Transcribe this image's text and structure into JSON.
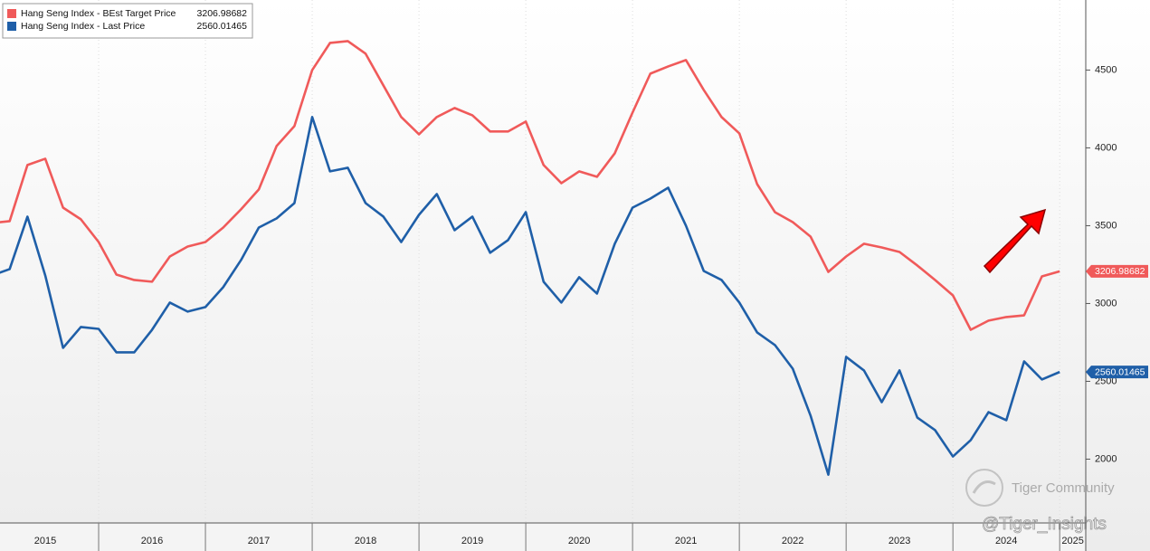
{
  "chart_data": {
    "type": "line",
    "categories": [
      "2015",
      null,
      null,
      null,
      null,
      null,
      "2016",
      null,
      null,
      null,
      null,
      null,
      "2017",
      null,
      null,
      null,
      null,
      null,
      "2018",
      null,
      null,
      null,
      null,
      null,
      "2019",
      null,
      null,
      null,
      null,
      null,
      "2020",
      null,
      null,
      null,
      null,
      null,
      "2021",
      null,
      null,
      null,
      null,
      null,
      "2022",
      null,
      null,
      null,
      null,
      null,
      "2023",
      null,
      null,
      null,
      null,
      null,
      "2024",
      null,
      null,
      null,
      null,
      null,
      "2025"
    ],
    "series": [
      {
        "name": "Hang Seng Index - BEst Target Price",
        "color": "#f05a5a",
        "axis": "y2",
        "values": [
          3517,
          3529,
          3890,
          3930,
          3616,
          3541,
          3395,
          3186,
          3151,
          3140,
          3302,
          3366,
          3395,
          3488,
          3605,
          3733,
          4012,
          4140,
          4500,
          4674,
          4686,
          4605,
          4401,
          4198,
          4087,
          4198,
          4256,
          4209,
          4105,
          4105,
          4169,
          3890,
          3773,
          3849,
          3814,
          3965,
          4227,
          4477,
          4523,
          4564,
          4372,
          4198,
          4093,
          3767,
          3587,
          3523,
          3430,
          3203,
          3302,
          3384,
          3360,
          3331,
          3244,
          3151,
          3052,
          2831,
          2890,
          2913,
          2924,
          3174,
          3206.98682
        ]
      },
      {
        "name": "Hang Seng Index - Last Price",
        "color": "#1f5fa8",
        "axis": "y2",
        "values": [
          3180,
          3221,
          3558,
          3180,
          2715,
          2849,
          2837,
          2686,
          2686,
          2831,
          3006,
          2948,
          2977,
          3105,
          3279,
          3488,
          3547,
          3645,
          4198,
          3849,
          3872,
          3645,
          3558,
          3395,
          3570,
          3703,
          3471,
          3558,
          3326,
          3407,
          3587,
          3140,
          3006,
          3169,
          3064,
          3384,
          3616,
          3674,
          3744,
          3500,
          3209,
          3151,
          3006,
          2814,
          2733,
          2581,
          2280,
          1900,
          2657,
          2570,
          2366,
          2570,
          2267,
          2186,
          2017,
          2122,
          2302,
          2250,
          2628,
          2512,
          2560.01465
        ]
      }
    ],
    "y2lim": [
      1590,
      4950
    ],
    "y2ticks": [
      2000,
      2500,
      3000,
      3500,
      4000,
      4500
    ],
    "legend": "top-left",
    "watermarks": [
      "Tiger Community",
      "@Tiger_Insights"
    ]
  }
}
